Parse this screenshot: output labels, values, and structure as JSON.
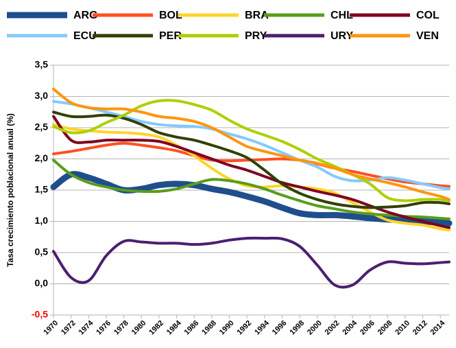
{
  "chart_data": {
    "type": "line",
    "y_axis_label": "Tasa crecimiento poblacional anual (%)",
    "x": [
      1970,
      1972,
      1974,
      1976,
      1978,
      1980,
      1982,
      1984,
      1986,
      1988,
      1990,
      1992,
      1994,
      1996,
      1998,
      2000,
      2002,
      2004,
      2006,
      2008,
      2010,
      2012,
      2014,
      2015
    ],
    "xlim": [
      1970,
      2015
    ],
    "xticks": [
      1970,
      1972,
      1974,
      1976,
      1978,
      1980,
      1982,
      1984,
      1986,
      1988,
      1990,
      1992,
      1994,
      1996,
      1998,
      2000,
      2002,
      2004,
      2006,
      2008,
      2010,
      2012,
      2014
    ],
    "ylim": [
      -0.5,
      3.5
    ],
    "yticks": [
      {
        "value": -0.5,
        "label": "-0,5"
      },
      {
        "value": 0,
        "label": "0,0"
      },
      {
        "value": 0.5,
        "label": "0,5"
      },
      {
        "value": 1,
        "label": "1,0"
      },
      {
        "value": 1.5,
        "label": "1,5"
      },
      {
        "value": 2,
        "label": "2,0"
      },
      {
        "value": 2.5,
        "label": "2,5"
      },
      {
        "value": 3,
        "label": "3,0"
      },
      {
        "value": 3.5,
        "label": "3,5"
      }
    ],
    "negative_tick_color": "#ff0000",
    "grid": true,
    "legend": "top",
    "series": [
      {
        "name": "ARG",
        "color": "#1f4e8c",
        "values": [
          1.55,
          1.75,
          1.7,
          1.6,
          1.5,
          1.52,
          1.58,
          1.6,
          1.58,
          1.52,
          1.47,
          1.4,
          1.32,
          1.22,
          1.13,
          1.1,
          1.1,
          1.08,
          1.05,
          1.03,
          1.02,
          1.0,
          0.98,
          0.97
        ]
      },
      {
        "name": "BOL",
        "color": "#ff4f1f",
        "values": [
          2.08,
          2.12,
          2.17,
          2.22,
          2.25,
          2.22,
          2.18,
          2.13,
          2.05,
          1.98,
          1.97,
          1.98,
          1.99,
          2.0,
          1.98,
          1.92,
          1.85,
          1.8,
          1.74,
          1.68,
          1.63,
          1.6,
          1.57,
          1.56
        ]
      },
      {
        "name": "BRA",
        "color": "#ffd42a",
        "values": [
          2.55,
          2.48,
          2.45,
          2.43,
          2.42,
          2.4,
          2.35,
          2.22,
          2.05,
          1.85,
          1.68,
          1.57,
          1.55,
          1.57,
          1.55,
          1.52,
          1.45,
          1.3,
          1.15,
          1.02,
          0.97,
          0.94,
          0.88,
          0.86
        ]
      },
      {
        "name": "CHL",
        "color": "#579d1c",
        "values": [
          1.98,
          1.75,
          1.62,
          1.55,
          1.5,
          1.48,
          1.48,
          1.52,
          1.6,
          1.67,
          1.65,
          1.6,
          1.52,
          1.42,
          1.33,
          1.25,
          1.2,
          1.15,
          1.12,
          1.1,
          1.08,
          1.07,
          1.05,
          1.04
        ]
      },
      {
        "name": "COL",
        "color": "#7e0021",
        "values": [
          2.68,
          2.3,
          2.27,
          2.3,
          2.3,
          2.3,
          2.28,
          2.2,
          2.1,
          2.0,
          1.9,
          1.82,
          1.72,
          1.62,
          1.55,
          1.48,
          1.42,
          1.35,
          1.25,
          1.15,
          1.07,
          1.0,
          0.93,
          0.9
        ]
      },
      {
        "name": "ECU",
        "color": "#83caff",
        "values": [
          2.92,
          2.88,
          2.82,
          2.75,
          2.68,
          2.6,
          2.55,
          2.53,
          2.52,
          2.48,
          2.4,
          2.32,
          2.22,
          2.1,
          1.98,
          1.87,
          1.72,
          1.65,
          1.66,
          1.7,
          1.66,
          1.6,
          1.54,
          1.52
        ]
      },
      {
        "name": "PER",
        "color": "#314004",
        "values": [
          2.75,
          2.68,
          2.68,
          2.7,
          2.65,
          2.55,
          2.42,
          2.35,
          2.3,
          2.22,
          2.13,
          2.02,
          1.82,
          1.6,
          1.45,
          1.35,
          1.28,
          1.24,
          1.22,
          1.23,
          1.25,
          1.3,
          1.3,
          1.28
        ]
      },
      {
        "name": "PRY",
        "color": "#aecf00",
        "values": [
          2.52,
          2.42,
          2.45,
          2.58,
          2.7,
          2.85,
          2.93,
          2.93,
          2.87,
          2.78,
          2.62,
          2.48,
          2.38,
          2.28,
          2.15,
          2.0,
          1.88,
          1.75,
          1.6,
          1.38,
          1.33,
          1.35,
          1.35,
          1.33
        ]
      },
      {
        "name": "URY",
        "color": "#4b1f6f",
        "values": [
          0.52,
          0.1,
          0.05,
          0.45,
          0.68,
          0.67,
          0.65,
          0.65,
          0.63,
          0.65,
          0.7,
          0.73,
          0.73,
          0.72,
          0.6,
          0.3,
          -0.02,
          -0.02,
          0.22,
          0.35,
          0.33,
          0.32,
          0.34,
          0.35
        ]
      },
      {
        "name": "VEN",
        "color": "#ff950e",
        "values": [
          3.12,
          2.9,
          2.82,
          2.8,
          2.8,
          2.75,
          2.68,
          2.65,
          2.6,
          2.5,
          2.35,
          2.2,
          2.12,
          2.05,
          1.98,
          1.93,
          1.85,
          1.75,
          1.68,
          1.62,
          1.55,
          1.47,
          1.4,
          1.35
        ]
      }
    ]
  }
}
